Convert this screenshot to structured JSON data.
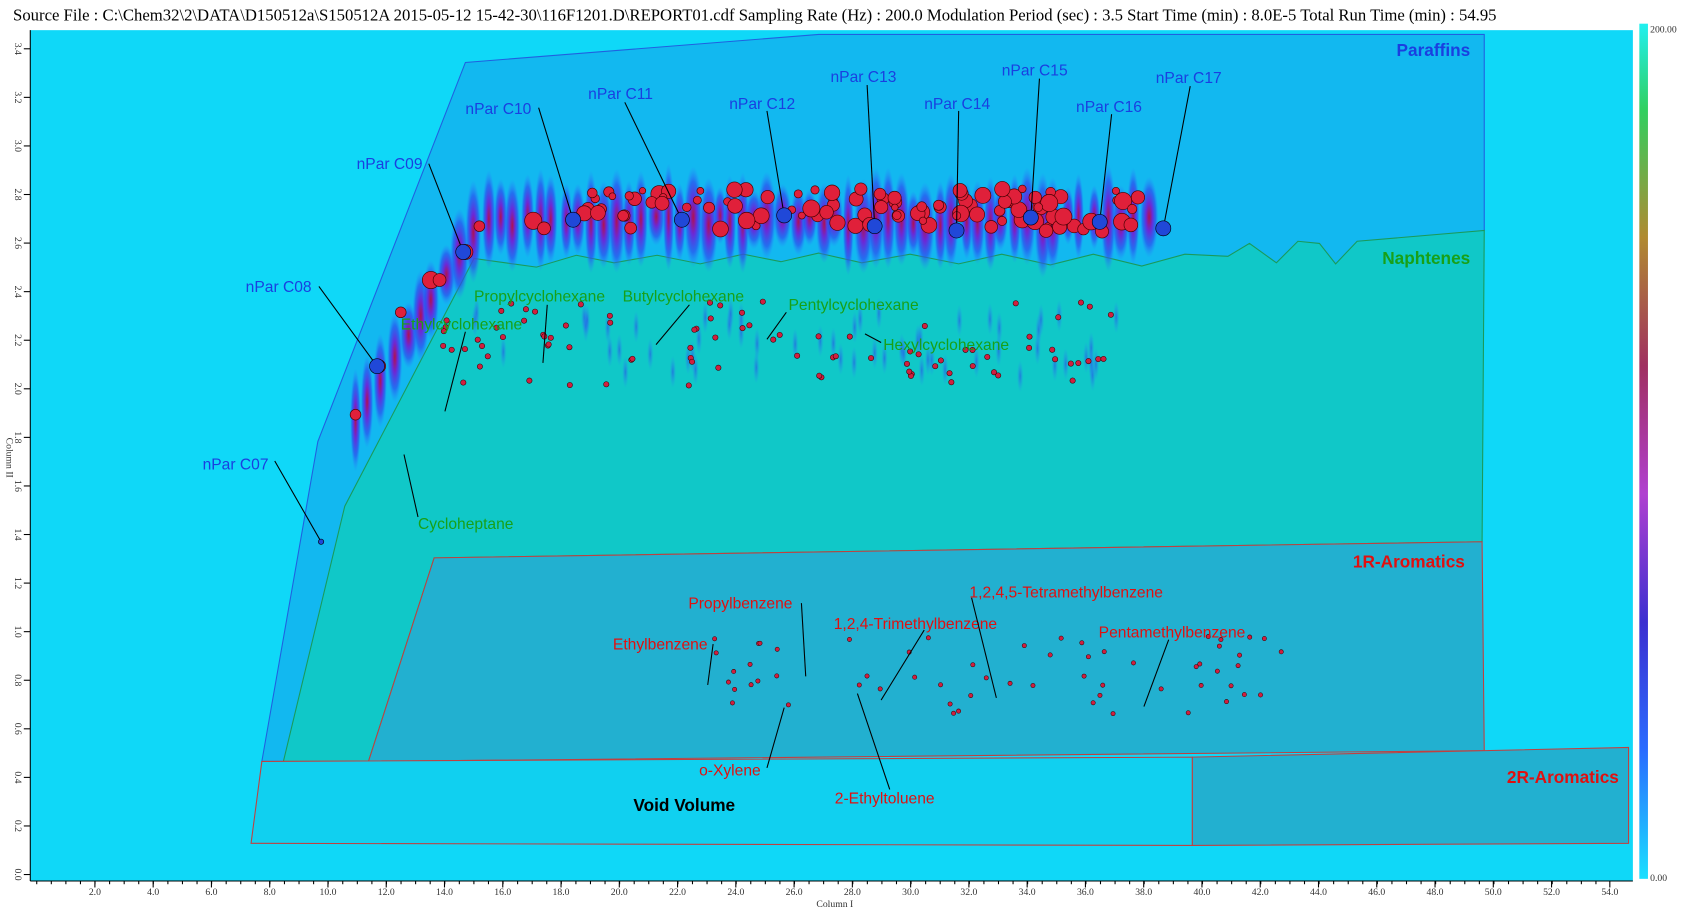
{
  "header": "Source File : C:\\Chem32\\2\\DATA\\D150512a\\S150512A 2015-05-12 15-42-30\\116F1201.D\\REPORT01.cdf  Sampling Rate (Hz) : 200.0  Modulation Period (sec) : 3.5  Start Time (min) : 8.0E-5  Total Run Time (min) : 54.95",
  "x_axis": {
    "title": "Column I",
    "ticks": [
      "2.0",
      "4.0",
      "6.0",
      "8.0",
      "10.0",
      "12.0",
      "14.0",
      "16.0",
      "18.0",
      "20.0",
      "22.0",
      "24.0",
      "26.0",
      "28.0",
      "30.0",
      "32.0",
      "34.0",
      "36.0",
      "38.0",
      "40.0",
      "42.0",
      "44.0",
      "46.0",
      "48.0",
      "50.0",
      "52.0",
      "54.0"
    ]
  },
  "y_axis": {
    "title": "Column II",
    "ticks": [
      "0.0",
      "0.2",
      "0.4",
      "0.6",
      "0.8",
      "1.0",
      "1.2",
      "1.4",
      "1.6",
      "1.8",
      "2.0",
      "2.2",
      "2.4",
      "2.6",
      "2.8",
      "3.0",
      "3.2",
      "3.4"
    ]
  },
  "colorbar": {
    "max": "200.00",
    "min": "0.00"
  },
  "regions": [
    "Paraffins",
    "Naphtenes",
    "1R-Aromatics",
    "2R-Aromatics",
    "Void Volume"
  ],
  "peaks": [
    "nPar C07",
    "nPar C08",
    "nPar C09",
    "nPar C10",
    "nPar C11",
    "nPar C12",
    "nPar C13",
    "nPar C14",
    "nPar C15",
    "nPar C16",
    "nPar C17",
    "Cycloheptane",
    "Ethylcyclohexane",
    "Propylcyclohexane",
    "Butylcyclohexane",
    "Pentylcyclohexane",
    "Hexylcyclohexane",
    "Ethylbenzene",
    "Propylbenzene",
    "1,2,4-Trimethylbenzene",
    "1,2,4,5-Tetramethylbenzene",
    "Pentamethylbenzene",
    "o-Xylene",
    "2-Ethyltoluene"
  ]
}
